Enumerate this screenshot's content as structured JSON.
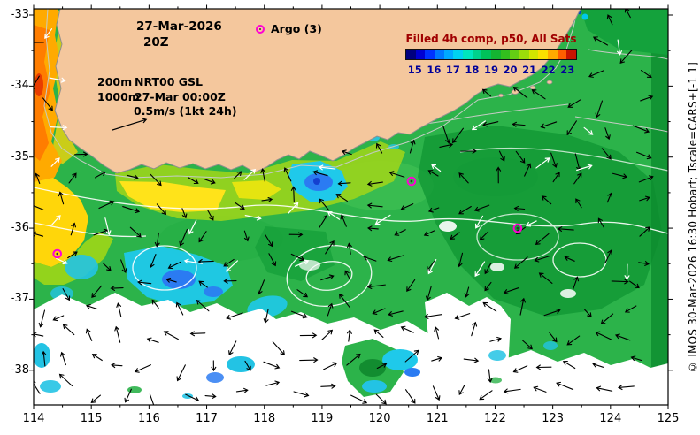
{
  "annotations": {
    "date": "27-Mar-2026",
    "time": "20Z",
    "argo_label": "Argo (3)",
    "depth1": "200m",
    "product": "NRT00 GSL",
    "depth2": "1000m",
    "valid_time": "27-Mar 00:00Z",
    "vector_scale": "0.5m/s (1kt 24h)"
  },
  "colorbar": {
    "title": "Filled 4h comp, p50, All Sats",
    "title_color": "#a00000",
    "tick_color": "#000099",
    "ticks": [
      "15",
      "16",
      "17",
      "18",
      "19",
      "20",
      "21",
      "22",
      "23"
    ],
    "segment_colors": [
      "#000080",
      "#0000d2",
      "#0032ff",
      "#0078ff",
      "#00aaff",
      "#00d2f0",
      "#00e6be",
      "#00d28c",
      "#00c35a",
      "#14b432",
      "#32be1e",
      "#64cd14",
      "#9bdc0a",
      "#d2e600",
      "#fae100",
      "#ffaa00",
      "#ff5f00",
      "#c81400"
    ]
  },
  "axes": {
    "x_ticks": [
      "114",
      "115",
      "116",
      "117",
      "118",
      "119",
      "120",
      "121",
      "122",
      "123",
      "124",
      "125"
    ],
    "y_ticks": [
      "-33",
      "-34",
      "-35",
      "-36",
      "-37",
      "-38"
    ]
  },
  "argo_markers": {
    "color": "#ff00d4",
    "positions_lonlat": [
      [
        120.55,
        -35.34
      ],
      [
        122.39,
        -36.0
      ],
      [
        114.41,
        -36.36
      ]
    ]
  },
  "map": {
    "land_color": "#f4c79d",
    "sea_base_color": "#2cb34a"
  },
  "credit": "© IMOS 30-Mar-2026 16:30 Hobart; Tscale=CARS+[-1 1]"
}
